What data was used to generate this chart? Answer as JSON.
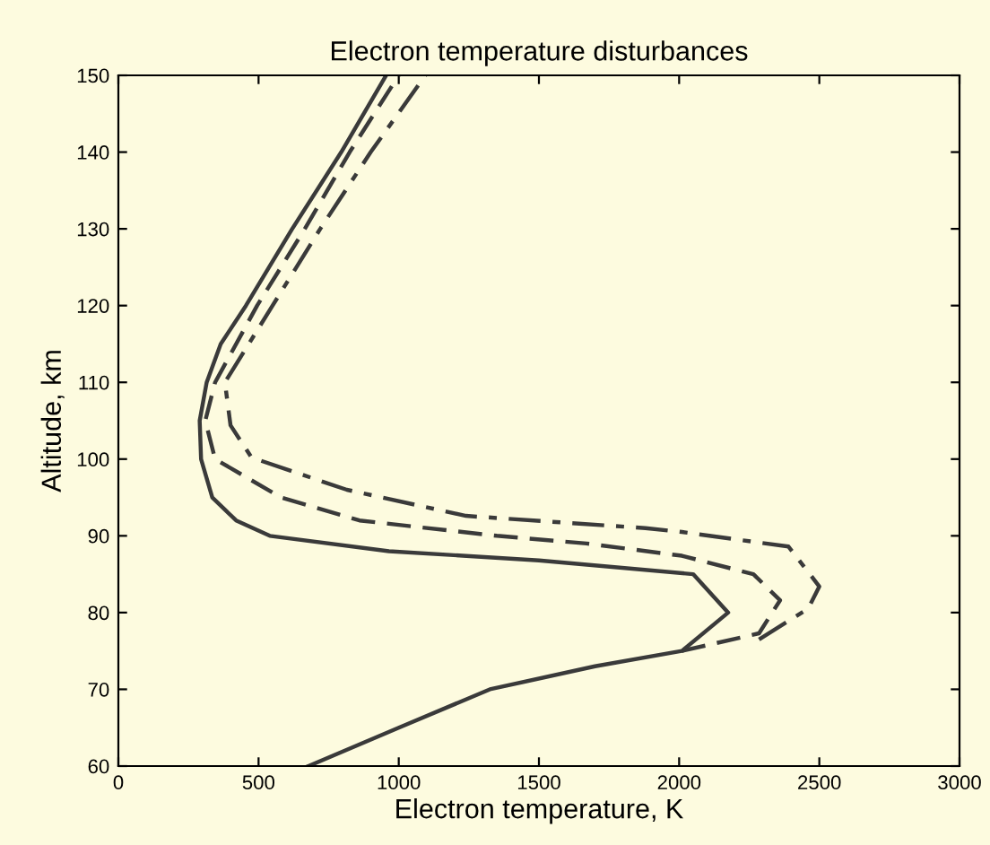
{
  "chart_data": {
    "type": "line",
    "title": "Electron temperature disturbances",
    "xlabel": "Electron temperature, K",
    "ylabel": "Altitude, km",
    "xlim": [
      0,
      3000
    ],
    "xticks": [
      0,
      500,
      1000,
      1500,
      2000,
      2500,
      3000
    ],
    "ylim": [
      60,
      150
    ],
    "yticks": [
      60,
      70,
      80,
      90,
      100,
      110,
      120,
      130,
      140,
      150
    ],
    "grid": false,
    "series": [
      {
        "color": "#3a3a3a",
        "line_style": "solid",
        "x": [
          678,
          1000,
          1325,
          1700,
          2010,
          2175,
          2050,
          1500,
          965,
          540,
          420,
          335,
          295,
          290,
          315,
          365,
          455,
          620,
          795,
          955
        ],
        "values": [
          60,
          65,
          70,
          73,
          75,
          80,
          85,
          86.8,
          88,
          90,
          92,
          95,
          100,
          105,
          110,
          115,
          120,
          130,
          140,
          150
        ]
      },
      {
        "color": "#3a3a3a",
        "line_style": "dashed",
        "x": [
          2010,
          2285,
          2360,
          2265,
          2010,
          1670,
          1350,
          860,
          580,
          345,
          310,
          345,
          495,
          665,
          825,
          1000
        ],
        "values": [
          75,
          77.3,
          81.6,
          85,
          87.4,
          89,
          90,
          92,
          95,
          100,
          105,
          110,
          120,
          130,
          140,
          150
        ]
      },
      {
        "color": "#3a3a3a",
        "line_style": "dashdot",
        "x": [
          2285,
          2460,
          2500,
          2390,
          2010,
          1880,
          1240,
          815,
          475,
          400,
          380,
          550,
          720,
          900,
          1095
        ],
        "values": [
          76.5,
          80.5,
          83.4,
          88.6,
          90.5,
          91,
          92.6,
          96,
          100.2,
          104.4,
          110,
          120,
          130,
          140,
          150
        ]
      }
    ]
  }
}
